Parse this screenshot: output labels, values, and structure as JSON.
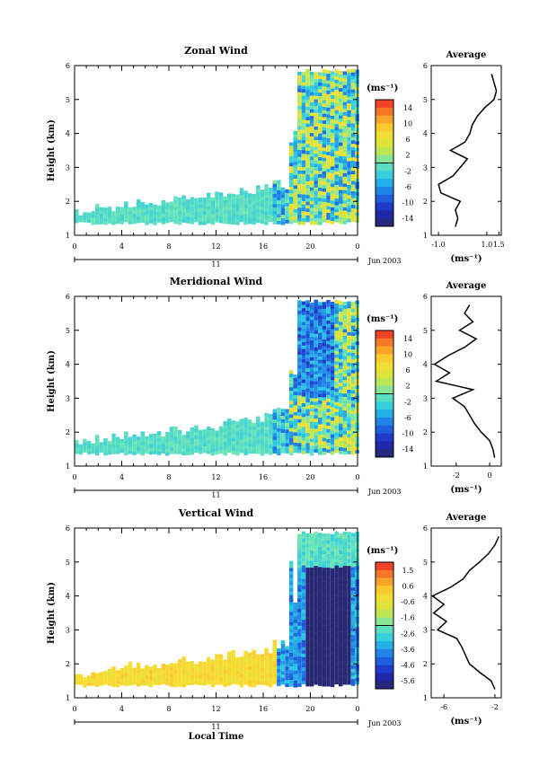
{
  "chart_data": [
    {
      "type": "heatmap",
      "title": "Zonal Wind",
      "ylabel": "Height (km)",
      "ylim": [
        1,
        6
      ],
      "yticks": [
        "1",
        "2",
        "3",
        "4",
        "5",
        "6"
      ],
      "xlim": [
        0,
        24
      ],
      "xticks": [
        "0",
        "4",
        "8",
        "12",
        "16",
        "20",
        "0"
      ],
      "day_label": "11",
      "date_label": "Jun 2003",
      "colorbar": {
        "unit": "(ms⁻¹)",
        "ticks": [
          "14",
          "10",
          "6",
          "2",
          "-2",
          "-6",
          "-10",
          "-14"
        ],
        "range": [
          -16,
          16
        ]
      },
      "profile": {
        "title": "Average",
        "xticks": [
          "-1.0",
          "1.0",
          "1.5"
        ],
        "xlim": [
          -1.3,
          1.6
        ],
        "xunit": "(ms⁻¹)",
        "height_km": [
          1.25,
          1.5,
          1.75,
          2.0,
          2.25,
          2.5,
          2.75,
          3.0,
          3.25,
          3.5,
          3.75,
          4.0,
          4.25,
          4.5,
          4.75,
          5.0,
          5.25,
          5.5,
          5.75
        ],
        "value": [
          -0.3,
          -0.2,
          -0.3,
          -0.1,
          -0.9,
          -1.0,
          -0.4,
          -0.1,
          0.2,
          -0.5,
          0.1,
          0.3,
          0.4,
          0.6,
          0.9,
          1.3,
          1.4,
          1.3,
          1.2
        ]
      }
    },
    {
      "type": "heatmap",
      "title": "Meridional Wind",
      "ylabel": "Height (km)",
      "ylim": [
        1,
        6
      ],
      "yticks": [
        "1",
        "2",
        "3",
        "4",
        "5",
        "6"
      ],
      "xlim": [
        0,
        24
      ],
      "xticks": [
        "0",
        "4",
        "8",
        "12",
        "16",
        "20",
        "0"
      ],
      "day_label": "11",
      "date_label": "Jun 2003",
      "colorbar": {
        "unit": "(ms⁻¹)",
        "ticks": [
          "14",
          "10",
          "6",
          "2",
          "-2",
          "-6",
          "-10",
          "-14"
        ],
        "range": [
          -16,
          16
        ]
      },
      "profile": {
        "title": "Average",
        "xticks": [
          "-2",
          "0"
        ],
        "xlim": [
          -3.5,
          0.7
        ],
        "xunit": "(ms⁻¹)",
        "height_km": [
          1.25,
          1.5,
          1.75,
          2.0,
          2.25,
          2.5,
          2.75,
          3.0,
          3.25,
          3.5,
          3.75,
          4.0,
          4.25,
          4.5,
          4.75,
          5.0,
          5.25,
          5.5,
          5.75
        ],
        "value": [
          0.3,
          0.2,
          0.0,
          -0.5,
          -0.9,
          -1.2,
          -1.5,
          -2.2,
          -1.0,
          -3.2,
          -2.4,
          -3.3,
          -2.5,
          -1.5,
          -0.8,
          -1.8,
          -1.0,
          -1.5,
          -1.2
        ]
      }
    },
    {
      "type": "heatmap",
      "title": "Vertical Wind",
      "xlabel": "Local Time",
      "ylabel": "Height (km)",
      "ylim": [
        1,
        6
      ],
      "yticks": [
        "1",
        "2",
        "3",
        "4",
        "5",
        "6"
      ],
      "xlim": [
        0,
        24
      ],
      "xticks": [
        "0",
        "4",
        "8",
        "12",
        "16",
        "20",
        "0"
      ],
      "day_label": "11",
      "date_label": "Jun 2003",
      "colorbar": {
        "unit": "(ms⁻¹)",
        "ticks": [
          "1.5",
          "0.6",
          "-0.6",
          "-1.6",
          "-2.6",
          "-3.6",
          "-4.6",
          "-5.6"
        ],
        "range": [
          -6,
          2
        ]
      },
      "profile": {
        "title": "Average",
        "xticks": [
          "-6",
          "-2"
        ],
        "xlim": [
          -7,
          -1.5
        ],
        "xunit": "(ms⁻¹)",
        "height_km": [
          1.25,
          1.5,
          1.75,
          2.0,
          2.25,
          2.5,
          2.75,
          3.0,
          3.25,
          3.5,
          3.75,
          4.0,
          4.25,
          4.5,
          4.75,
          5.0,
          5.25,
          5.5,
          5.75
        ],
        "value": [
          -2.0,
          -2.3,
          -3.2,
          -4.0,
          -4.3,
          -4.6,
          -5.0,
          -6.5,
          -5.8,
          -6.8,
          -6.0,
          -6.9,
          -5.5,
          -4.5,
          -4.0,
          -3.2,
          -2.5,
          -2.0,
          -1.7
        ]
      }
    }
  ]
}
